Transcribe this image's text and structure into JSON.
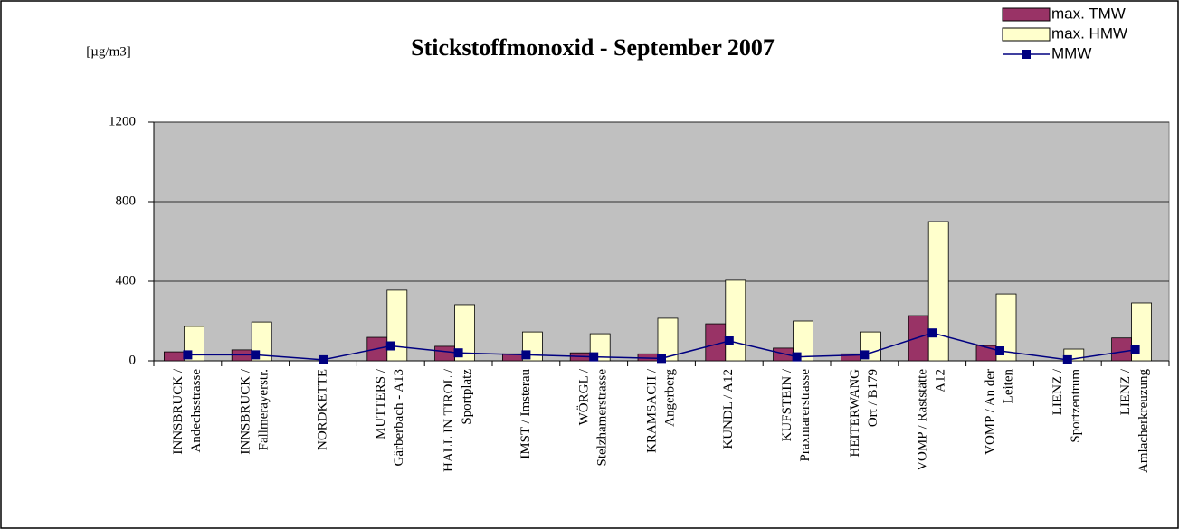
{
  "chart_data": {
    "type": "bar-line",
    "title": "Stickstoffmonoxid - September 2007",
    "unit_label": "[µg/m3]",
    "categories": [
      [
        "INNSBRUCK /",
        "Andechsstrasse"
      ],
      [
        "INNSBRUCK /",
        "Fallmerayerstr."
      ],
      [
        "NORDKETTE"
      ],
      [
        "MUTTERS /",
        "Gärberbach - A13"
      ],
      [
        "HALL IN TIROL /",
        "Sportplatz"
      ],
      [
        "IMST / Imsterau"
      ],
      [
        "WÖRGL /",
        "Stelzhamerstrasse"
      ],
      [
        "KRAMSACH /",
        "Angerberg"
      ],
      [
        "KUNDL / A12"
      ],
      [
        "KUFSTEIN /",
        "Praxmarerstrasse"
      ],
      [
        "HEITERWANG",
        "Ort / B179"
      ],
      [
        "VOMP / Raststätte",
        "A12"
      ],
      [
        "VOMP / An der",
        "Leiten"
      ],
      [
        "LIENZ /",
        "Sportzentrum"
      ],
      [
        "LIENZ /",
        "Amlacherkreuzung"
      ]
    ],
    "series": [
      {
        "name": "max. TMW",
        "type": "bar",
        "color": "#993366",
        "values": [
          45,
          55,
          null,
          118,
          73,
          35,
          40,
          35,
          186,
          64,
          35,
          227,
          77,
          null,
          115
        ]
      },
      {
        "name": "max. HMW",
        "type": "bar",
        "color": "#ffffcc",
        "values": [
          173,
          195,
          null,
          355,
          282,
          145,
          136,
          214,
          405,
          200,
          145,
          700,
          336,
          59,
          291
        ]
      },
      {
        "name": "MMW",
        "type": "line",
        "color": "#000080",
        "values": [
          30,
          30,
          5,
          75,
          40,
          30,
          20,
          12,
          100,
          20,
          30,
          140,
          50,
          5,
          55
        ]
      }
    ],
    "ylim": [
      0,
      1200
    ],
    "yticks": [
      0,
      400,
      800,
      1200
    ],
    "grid": true,
    "legend": "top-right",
    "plot_background": "#c0c0c0"
  }
}
